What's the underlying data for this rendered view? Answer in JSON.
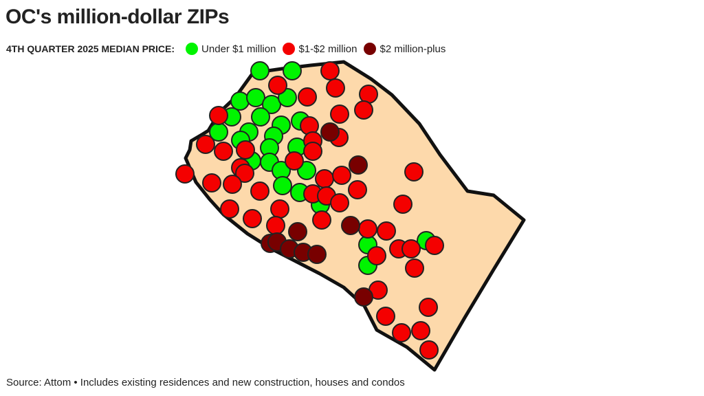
{
  "title": "OC's million-dollar ZIPs",
  "legend": {
    "heading": "4TH QUARTER 2025 MEDIAN PRICE:",
    "items": [
      {
        "key": "under1",
        "label": "Under $1 million",
        "color": "#00f400"
      },
      {
        "key": "1to2",
        "label": "$1-$2 million",
        "color": "#f40000"
      },
      {
        "key": "over2",
        "label": "$2 million-plus",
        "color": "#780000"
      }
    ]
  },
  "source": "Source: Attom • Includes existing residences and new construction, houses and condos",
  "colors": {
    "land": "#fdd9ab",
    "outline": "#111111",
    "marker_stroke": "#222222"
  }
}
